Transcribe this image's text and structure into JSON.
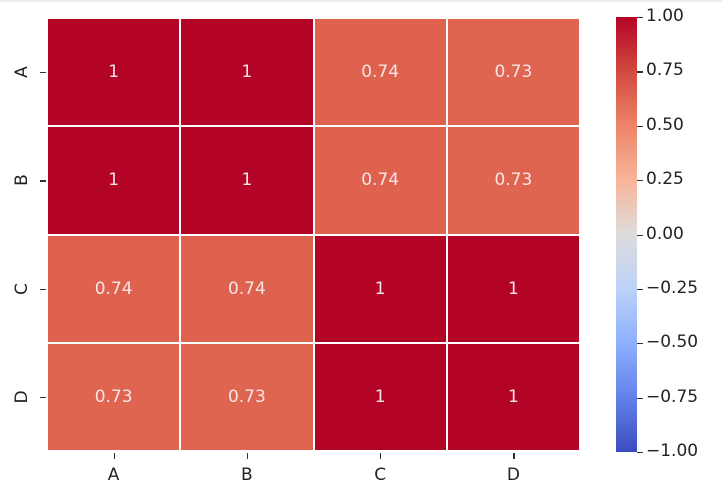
{
  "chart_data": {
    "type": "heatmap",
    "title": "",
    "xlabel": "",
    "ylabel": "",
    "x_labels": [
      "A",
      "B",
      "C",
      "D"
    ],
    "y_labels": [
      "A",
      "B",
      "C",
      "D"
    ],
    "values": [
      [
        1,
        1,
        0.74,
        0.73
      ],
      [
        1,
        1,
        0.74,
        0.73
      ],
      [
        0.74,
        0.74,
        1,
        1
      ],
      [
        0.73,
        0.73,
        1,
        1
      ]
    ],
    "annotations": [
      [
        "1",
        "1",
        "0.74",
        "0.73"
      ],
      [
        "1",
        "1",
        "0.74",
        "0.73"
      ],
      [
        "0.74",
        "0.74",
        "1",
        "1"
      ],
      [
        "0.73",
        "0.73",
        "1",
        "1"
      ]
    ],
    "colormap": "coolwarm",
    "vmin": -1.0,
    "vmax": 1.0,
    "colorbar": {
      "ticks": [
        "1.00",
        "0.75",
        "0.50",
        "0.25",
        "0.00",
        "−0.25",
        "−0.50",
        "−0.75",
        "−1.00"
      ],
      "tick_values": [
        1.0,
        0.75,
        0.5,
        0.25,
        0.0,
        -0.25,
        -0.5,
        -0.75,
        -1.0
      ],
      "position": "right"
    },
    "colors": {
      "high": "#b40426",
      "mid": "#dddcdc",
      "low": "#3b4cc0",
      "cell_074": "#e0654f",
      "cell_073": "#e16852"
    },
    "grid": false,
    "linewidths_color": "#ffffff"
  }
}
